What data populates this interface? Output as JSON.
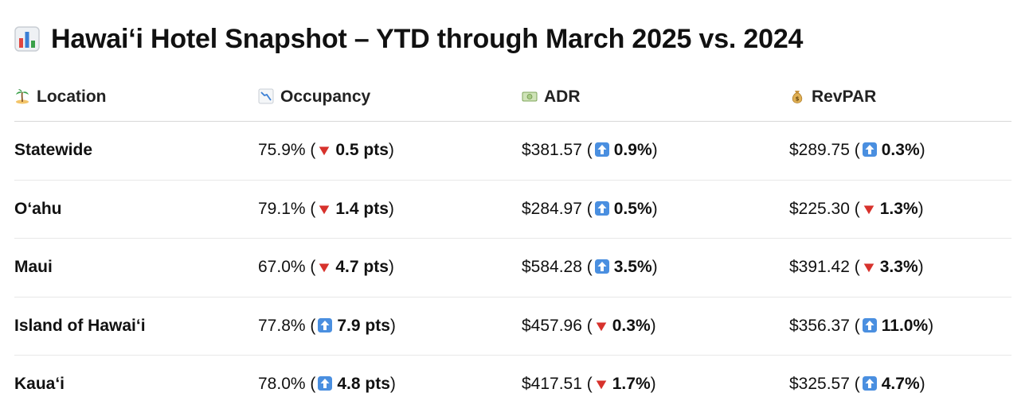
{
  "title": "Hawai‘i Hotel Snapshot – YTD through March 2025 vs. 2024",
  "title_icon": "bar-chart-icon",
  "headers": [
    {
      "label": "Location",
      "icon": "island-icon"
    },
    {
      "label": "Occupancy",
      "icon": "chart-decreasing-icon"
    },
    {
      "label": "ADR",
      "icon": "dollar-banknote-icon"
    },
    {
      "label": "RevPAR",
      "icon": "money-bag-icon"
    }
  ],
  "colors": {
    "down": "#d7322c",
    "up": "#4a8fe0"
  },
  "rows": [
    {
      "location": "Statewide",
      "occupancy": {
        "value": "75.9%",
        "direction": "down",
        "change": "0.5 pts"
      },
      "adr": {
        "value": "$381.57",
        "direction": "up",
        "change": "0.9%"
      },
      "revpar": {
        "value": "$289.75",
        "direction": "up",
        "change": "0.3%"
      }
    },
    {
      "location": "O‘ahu",
      "occupancy": {
        "value": "79.1%",
        "direction": "down",
        "change": "1.4 pts"
      },
      "adr": {
        "value": "$284.97",
        "direction": "up",
        "change": "0.5%"
      },
      "revpar": {
        "value": "$225.30",
        "direction": "down",
        "change": "1.3%"
      }
    },
    {
      "location": "Maui",
      "occupancy": {
        "value": "67.0%",
        "direction": "down",
        "change": "4.7 pts"
      },
      "adr": {
        "value": "$584.28",
        "direction": "up",
        "change": "3.5%"
      },
      "revpar": {
        "value": "$391.42",
        "direction": "down",
        "change": "3.3%"
      }
    },
    {
      "location": "Island of Hawai‘i",
      "occupancy": {
        "value": "77.8%",
        "direction": "up",
        "change": "7.9 pts"
      },
      "adr": {
        "value": "$457.96",
        "direction": "down",
        "change": "0.3%"
      },
      "revpar": {
        "value": "$356.37",
        "direction": "up",
        "change": "11.0%"
      }
    },
    {
      "location": "Kaua‘i",
      "occupancy": {
        "value": "78.0%",
        "direction": "up",
        "change": "4.8 pts"
      },
      "adr": {
        "value": "$417.51",
        "direction": "down",
        "change": "1.7%"
      },
      "revpar": {
        "value": "$325.57",
        "direction": "up",
        "change": "4.7%"
      }
    }
  ]
}
